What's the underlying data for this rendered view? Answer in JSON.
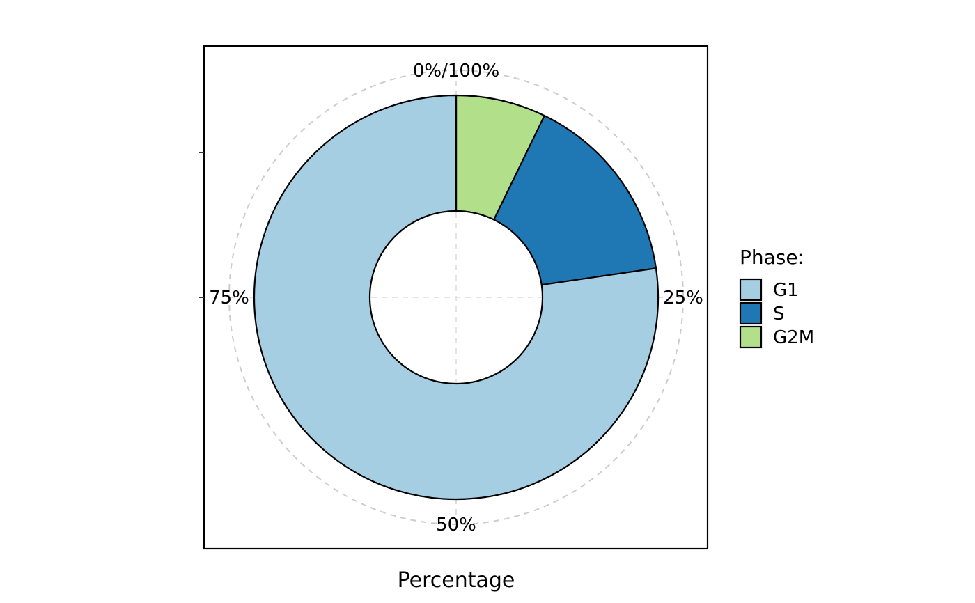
{
  "chart_data": {
    "type": "pie",
    "variant": "donut",
    "xlabel": "Percentage",
    "ylabel": "",
    "categories": [
      "G1",
      "S",
      "G2M"
    ],
    "values": [
      0.773,
      0.155,
      0.072
    ],
    "colors": [
      "#A6CEE3",
      "#1F78B4",
      "#B2DF8A"
    ],
    "angular_ticks": [
      {
        "value": 0,
        "label": "0%/100%"
      },
      {
        "value": 0.25,
        "label": "25%"
      },
      {
        "value": 0.5,
        "label": "50%"
      },
      {
        "value": 0.75,
        "label": "75%"
      }
    ],
    "legend": {
      "title": "Phase:",
      "placement": "right"
    },
    "grid": true
  }
}
